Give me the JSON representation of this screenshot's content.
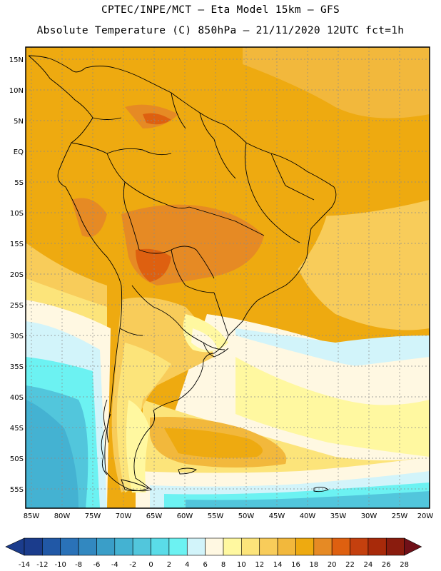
{
  "title": {
    "line1": "CPTEC/INPE/MCT –  Eta Model 15km – GFS",
    "line2": "Absolute Temperature (C) 850hPa – 21/11/2020 12UTC fct=1h"
  },
  "map": {
    "lat_labels": [
      "15N",
      "10N",
      "5N",
      "EQ",
      "5S",
      "10S",
      "15S",
      "20S",
      "25S",
      "30S",
      "35S",
      "40S",
      "45S",
      "50S",
      "55S"
    ],
    "lon_labels": [
      "85W",
      "80W",
      "75W",
      "70W",
      "65W",
      "60W",
      "55W",
      "50W",
      "45W",
      "40W",
      "35W",
      "30W",
      "25W",
      "20W"
    ],
    "extent": {
      "lon_min": -86,
      "lon_max": -19,
      "lat_min": -58,
      "lat_max": 16
    }
  },
  "colorbar": {
    "labels": [
      "-14",
      "-12",
      "-10",
      "-8",
      "-6",
      "-4",
      "-2",
      "0",
      "2",
      "4",
      "6",
      "8",
      "10",
      "12",
      "14",
      "16",
      "18",
      "20",
      "22",
      "24",
      "26",
      "28"
    ],
    "colors": [
      "#1b3c8c",
      "#2158a6",
      "#2a72b8",
      "#3288c0",
      "#3a9ec8",
      "#44b2d2",
      "#52c6dc",
      "#5adce8",
      "#6cf2f2",
      "#d2f4fa",
      "#fff8e2",
      "#fff8a0",
      "#fce47a",
      "#f8cc5a",
      "#f2b83c",
      "#eeaa10",
      "#e68a24",
      "#de6010",
      "#c4400e",
      "#a82a0a",
      "#8a1c0e",
      "#701018"
    ]
  }
}
